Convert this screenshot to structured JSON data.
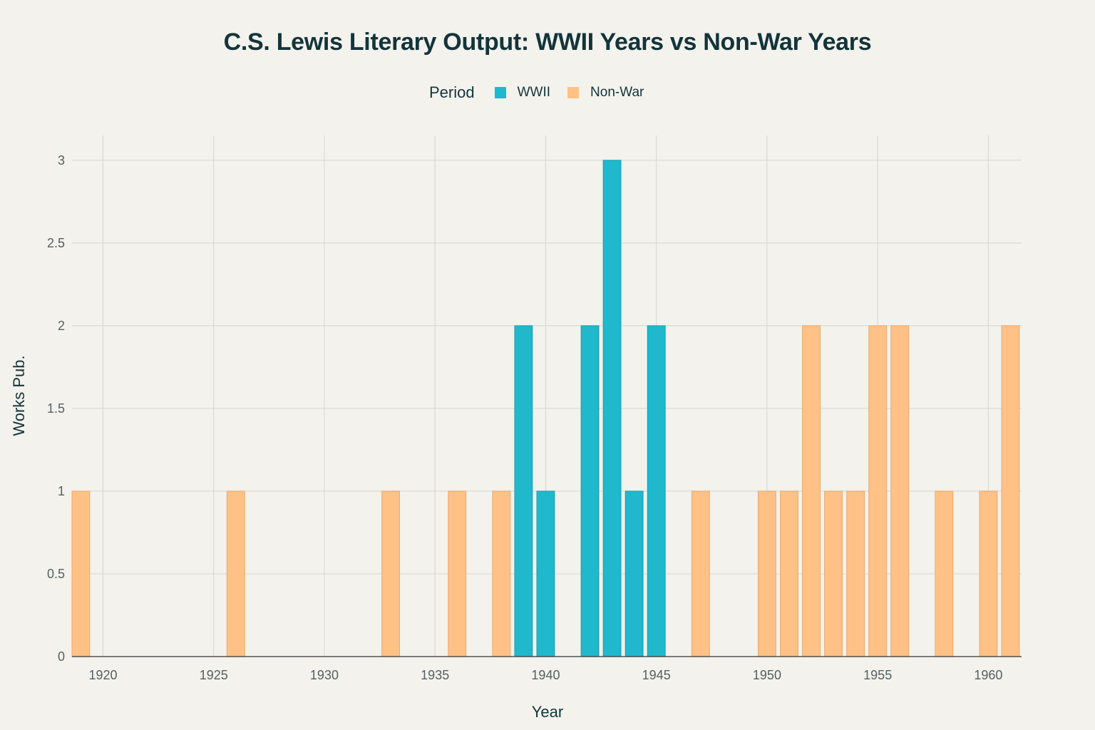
{
  "chart_data": {
    "type": "bar",
    "title": "C.S. Lewis Literary Output: WWII Years vs Non-War Years",
    "xlabel": "Year",
    "ylabel": "Works Pub.",
    "legend_title": "Period",
    "legend_position": "top-center",
    "grid": true,
    "xlim": [
      1918.6,
      1961.5
    ],
    "ylim": [
      0,
      3.15
    ],
    "x_ticks": [
      1920,
      1925,
      1930,
      1935,
      1940,
      1945,
      1950,
      1955,
      1960
    ],
    "y_ticks": [
      0,
      0.5,
      1,
      1.5,
      2,
      2.5,
      3
    ],
    "y_tick_labels": [
      "0",
      "0.5",
      "1",
      "1.5",
      "2",
      "2.5",
      "3"
    ],
    "series": [
      {
        "name": "WWII",
        "color": "#1fb8cd",
        "x": [
          1939,
          1940,
          1942,
          1943,
          1944,
          1945
        ],
        "values": [
          2,
          1,
          2,
          3,
          1,
          2
        ]
      },
      {
        "name": "Non-War",
        "color": "#ffc185",
        "x": [
          1919,
          1926,
          1933,
          1936,
          1938,
          1947,
          1950,
          1951,
          1952,
          1953,
          1954,
          1955,
          1956,
          1958,
          1960,
          1961
        ],
        "values": [
          1,
          1,
          1,
          1,
          1,
          1,
          1,
          1,
          2,
          1,
          1,
          2,
          2,
          1,
          1,
          2
        ]
      }
    ]
  }
}
